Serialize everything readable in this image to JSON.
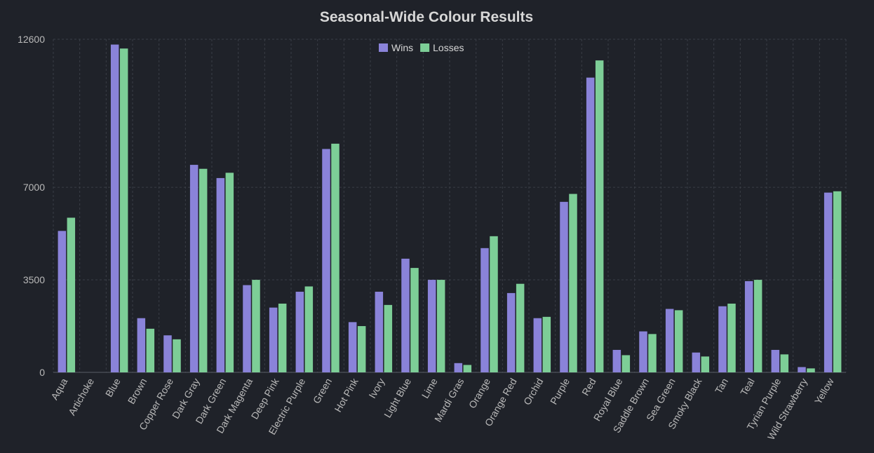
{
  "chart_data": {
    "type": "bar",
    "title": "Seasonal-Wide Colour Results",
    "xlabel": "",
    "ylabel": "",
    "ylim": [
      0,
      12600
    ],
    "yticks": [
      0,
      3500,
      7000,
      12600
    ],
    "grid": true,
    "legend": "top-center",
    "categories": [
      "Aqua",
      "Artichoke",
      "Blue",
      "Brown",
      "Copper Rose",
      "Dark Gray",
      "Dark Green",
      "Dark Magenta",
      "Deep Pink",
      "Electric Purple",
      "Green",
      "Hot Pink",
      "Ivory",
      "Light Blue",
      "Lime",
      "Mardi Gras",
      "Orange",
      "Orange Red",
      "Orchid",
      "Purple",
      "Red",
      "Royal Blue",
      "Saddle Brown",
      "Sea Green",
      "Smoky Black",
      "Tan",
      "Teal",
      "Tyrian Purple",
      "Wild Strawberry",
      "Yellow"
    ],
    "series": [
      {
        "name": "Wins",
        "color": "#8a83d9",
        "values": [
          5350,
          0,
          12400,
          2050,
          1400,
          7850,
          7350,
          3300,
          2450,
          3050,
          8450,
          1900,
          3050,
          4300,
          3500,
          350,
          4700,
          3000,
          2050,
          6450,
          11150,
          850,
          1550,
          2400,
          750,
          2500,
          3450,
          850,
          200,
          6800
        ]
      },
      {
        "name": "Losses",
        "color": "#7dce97",
        "values": [
          5850,
          0,
          12250,
          1650,
          1250,
          7700,
          7550,
          3500,
          2600,
          3250,
          8650,
          1750,
          2550,
          3950,
          3500,
          280,
          5150,
          3350,
          2100,
          6750,
          11800,
          650,
          1450,
          2350,
          600,
          2600,
          3500,
          680,
          150,
          6850
        ]
      }
    ]
  }
}
